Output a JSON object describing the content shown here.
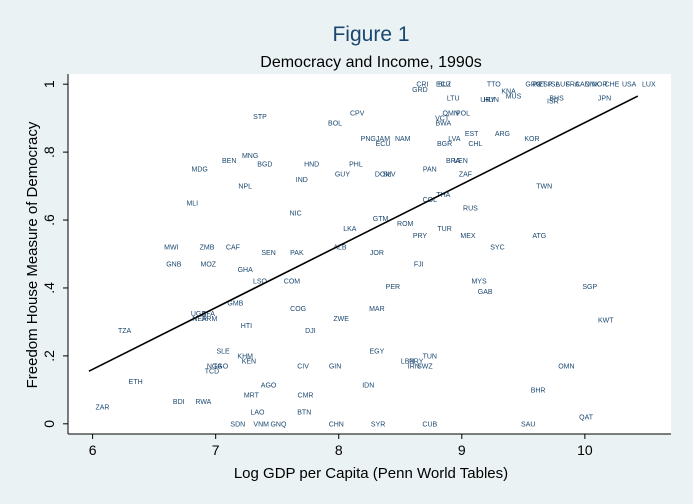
{
  "chart_data": {
    "type": "scatter",
    "title": "Figure 1",
    "subtitle": "Democracy and Income, 1990s",
    "xlabel": "Log GDP per Capita (Penn World Tables)",
    "ylabel": "Freedom House Measure of Democracy",
    "xlim": [
      5.8,
      10.7
    ],
    "ylim": [
      -0.03,
      1.03
    ],
    "xticks": [
      6,
      7,
      8,
      9,
      10
    ],
    "xtick_labels": [
      "6",
      "7",
      "8",
      "9",
      "10"
    ],
    "yticks": [
      0,
      0.2,
      0.4,
      0.6,
      0.8,
      1
    ],
    "ytick_labels": [
      "0",
      ".2",
      ".4",
      ".6",
      ".8",
      "1"
    ],
    "grid": false,
    "marker": "country-code-label",
    "fit_line": {
      "x": [
        5.97,
        10.43
      ],
      "y": [
        0.155,
        0.965
      ]
    },
    "points": [
      {
        "label": "CRI",
        "x": 8.68,
        "y": 1.0
      },
      {
        "label": "ECU",
        "x": 8.85,
        "y": 1.0
      },
      {
        "label": "BLZ",
        "x": 8.86,
        "y": 1.0
      },
      {
        "label": "GRD",
        "x": 8.66,
        "y": 0.985
      },
      {
        "label": "TTO",
        "x": 9.26,
        "y": 1.0
      },
      {
        "label": "KNA",
        "x": 9.38,
        "y": 0.98
      },
      {
        "label": "MUS",
        "x": 9.42,
        "y": 0.965
      },
      {
        "label": "GRC",
        "x": 9.58,
        "y": 1.0
      },
      {
        "label": "PRT",
        "x": 9.63,
        "y": 1.0
      },
      {
        "label": "ESP",
        "x": 9.68,
        "y": 1.0
      },
      {
        "label": "ISL",
        "x": 9.75,
        "y": 1.0
      },
      {
        "label": "AUS",
        "x": 9.82,
        "y": 1.0
      },
      {
        "label": "FRA",
        "x": 9.9,
        "y": 1.0
      },
      {
        "label": "CAN",
        "x": 9.98,
        "y": 1.0
      },
      {
        "label": "DNK",
        "x": 10.06,
        "y": 1.0
      },
      {
        "label": "NOR",
        "x": 10.12,
        "y": 1.0
      },
      {
        "label": "CHE",
        "x": 10.22,
        "y": 1.0
      },
      {
        "label": "USA",
        "x": 10.36,
        "y": 1.0
      },
      {
        "label": "LUX",
        "x": 10.52,
        "y": 1.0
      },
      {
        "label": "LTU",
        "x": 8.93,
        "y": 0.96
      },
      {
        "label": "URY",
        "x": 9.21,
        "y": 0.955
      },
      {
        "label": "HUN",
        "x": 9.24,
        "y": 0.955
      },
      {
        "label": "BHS",
        "x": 9.77,
        "y": 0.96
      },
      {
        "label": "ISR",
        "x": 9.74,
        "y": 0.95
      },
      {
        "label": "JPN",
        "x": 10.16,
        "y": 0.96
      },
      {
        "label": "STP",
        "x": 7.36,
        "y": 0.905
      },
      {
        "label": "CPV",
        "x": 8.15,
        "y": 0.915
      },
      {
        "label": "BOL",
        "x": 7.97,
        "y": 0.885
      },
      {
        "label": "OMN",
        "x": 8.91,
        "y": 0.915
      },
      {
        "label": "POL",
        "x": 9.01,
        "y": 0.915
      },
      {
        "label": "VCT",
        "x": 8.84,
        "y": 0.9
      },
      {
        "label": "BWA",
        "x": 8.85,
        "y": 0.885
      },
      {
        "label": "EST",
        "x": 9.08,
        "y": 0.855
      },
      {
        "label": "ARG",
        "x": 9.33,
        "y": 0.855
      },
      {
        "label": "PNG",
        "x": 8.24,
        "y": 0.84
      },
      {
        "label": "JAM",
        "x": 8.36,
        "y": 0.84
      },
      {
        "label": "NAM",
        "x": 8.52,
        "y": 0.84
      },
      {
        "label": "ECU",
        "x": 8.36,
        "y": 0.825
      },
      {
        "label": "LVA",
        "x": 8.94,
        "y": 0.84
      },
      {
        "label": "KOR",
        "x": 9.57,
        "y": 0.84
      },
      {
        "label": "BGR",
        "x": 8.86,
        "y": 0.825
      },
      {
        "label": "CHL",
        "x": 9.11,
        "y": 0.825
      },
      {
        "label": "MNG",
        "x": 7.28,
        "y": 0.79
      },
      {
        "label": "BEN",
        "x": 7.11,
        "y": 0.775
      },
      {
        "label": "BGD",
        "x": 7.4,
        "y": 0.765
      },
      {
        "label": "HND",
        "x": 7.78,
        "y": 0.765
      },
      {
        "label": "PHL",
        "x": 8.14,
        "y": 0.765
      },
      {
        "label": "BRA",
        "x": 8.93,
        "y": 0.775
      },
      {
        "label": "VEN",
        "x": 8.99,
        "y": 0.775
      },
      {
        "label": "MDG",
        "x": 6.87,
        "y": 0.75
      },
      {
        "label": "PAN",
        "x": 8.74,
        "y": 0.75
      },
      {
        "label": "GUY",
        "x": 8.03,
        "y": 0.735
      },
      {
        "label": "DOM",
        "x": 8.36,
        "y": 0.735
      },
      {
        "label": "SLV",
        "x": 8.41,
        "y": 0.735
      },
      {
        "label": "ZAF",
        "x": 9.03,
        "y": 0.735
      },
      {
        "label": "IND",
        "x": 7.7,
        "y": 0.72
      },
      {
        "label": "NPL",
        "x": 7.24,
        "y": 0.7
      },
      {
        "label": "TWN",
        "x": 9.67,
        "y": 0.7
      },
      {
        "label": "THA",
        "x": 8.85,
        "y": 0.675
      },
      {
        "label": "COL",
        "x": 8.74,
        "y": 0.66
      },
      {
        "label": "MLI",
        "x": 6.81,
        "y": 0.65
      },
      {
        "label": "RUS",
        "x": 9.07,
        "y": 0.635
      },
      {
        "label": "NIC",
        "x": 7.65,
        "y": 0.62
      },
      {
        "label": "GTM",
        "x": 8.34,
        "y": 0.605
      },
      {
        "label": "ROM",
        "x": 8.54,
        "y": 0.59
      },
      {
        "label": "LKA",
        "x": 8.09,
        "y": 0.575
      },
      {
        "label": "TUR",
        "x": 8.86,
        "y": 0.575
      },
      {
        "label": "PRY",
        "x": 8.66,
        "y": 0.555
      },
      {
        "label": "MEX",
        "x": 9.05,
        "y": 0.555
      },
      {
        "label": "ATG",
        "x": 9.63,
        "y": 0.555
      },
      {
        "label": "MWI",
        "x": 6.64,
        "y": 0.52
      },
      {
        "label": "ZMB",
        "x": 6.93,
        "y": 0.52
      },
      {
        "label": "CAF",
        "x": 7.14,
        "y": 0.52
      },
      {
        "label": "ALB",
        "x": 8.01,
        "y": 0.52
      },
      {
        "label": "SYC",
        "x": 9.29,
        "y": 0.52
      },
      {
        "label": "SEN",
        "x": 7.43,
        "y": 0.505
      },
      {
        "label": "PAK",
        "x": 7.66,
        "y": 0.505
      },
      {
        "label": "JOR",
        "x": 8.31,
        "y": 0.505
      },
      {
        "label": "GNB",
        "x": 6.66,
        "y": 0.47
      },
      {
        "label": "MOZ",
        "x": 6.94,
        "y": 0.47
      },
      {
        "label": "FJI",
        "x": 8.65,
        "y": 0.47
      },
      {
        "label": "GHA",
        "x": 7.24,
        "y": 0.455
      },
      {
        "label": "LSO",
        "x": 7.36,
        "y": 0.42
      },
      {
        "label": "COM",
        "x": 7.62,
        "y": 0.42
      },
      {
        "label": "MYS",
        "x": 9.14,
        "y": 0.42
      },
      {
        "label": "PER",
        "x": 8.44,
        "y": 0.405
      },
      {
        "label": "SGP",
        "x": 10.04,
        "y": 0.405
      },
      {
        "label": "GAB",
        "x": 9.19,
        "y": 0.39
      },
      {
        "label": "GMB",
        "x": 7.16,
        "y": 0.355
      },
      {
        "label": "COG",
        "x": 7.67,
        "y": 0.34
      },
      {
        "label": "MAR",
        "x": 8.31,
        "y": 0.34
      },
      {
        "label": "UGA",
        "x": 6.86,
        "y": 0.325
      },
      {
        "label": "BFA",
        "x": 6.94,
        "y": 0.325
      },
      {
        "label": "NER",
        "x": 6.87,
        "y": 0.31
      },
      {
        "label": "ARM",
        "x": 6.95,
        "y": 0.31
      },
      {
        "label": "ZWE",
        "x": 8.02,
        "y": 0.31
      },
      {
        "label": "KWT",
        "x": 10.17,
        "y": 0.305
      },
      {
        "label": "TZA",
        "x": 6.26,
        "y": 0.275
      },
      {
        "label": "HTI",
        "x": 7.25,
        "y": 0.29
      },
      {
        "label": "DJI",
        "x": 7.77,
        "y": 0.275
      },
      {
        "label": "SLE",
        "x": 7.06,
        "y": 0.215
      },
      {
        "label": "EGY",
        "x": 8.31,
        "y": 0.215
      },
      {
        "label": "KHM",
        "x": 7.24,
        "y": 0.2
      },
      {
        "label": "TUN",
        "x": 8.74,
        "y": 0.2
      },
      {
        "label": "KEN",
        "x": 7.27,
        "y": 0.185
      },
      {
        "label": "LBN",
        "x": 8.56,
        "y": 0.185
      },
      {
        "label": "PRY",
        "x": 8.63,
        "y": 0.185
      },
      {
        "label": "NGA",
        "x": 6.99,
        "y": 0.17
      },
      {
        "label": "TGO",
        "x": 7.04,
        "y": 0.17
      },
      {
        "label": "CIV",
        "x": 7.71,
        "y": 0.17
      },
      {
        "label": "GIN",
        "x": 7.97,
        "y": 0.17
      },
      {
        "label": "IRN",
        "x": 8.61,
        "y": 0.17
      },
      {
        "label": "SWZ",
        "x": 8.7,
        "y": 0.17
      },
      {
        "label": "OMN",
        "x": 9.85,
        "y": 0.17
      },
      {
        "label": "TCD",
        "x": 6.97,
        "y": 0.155
      },
      {
        "label": "ETH",
        "x": 6.35,
        "y": 0.125
      },
      {
        "label": "AGO",
        "x": 7.43,
        "y": 0.115
      },
      {
        "label": "IDN",
        "x": 8.24,
        "y": 0.115
      },
      {
        "label": "BHR",
        "x": 9.62,
        "y": 0.1
      },
      {
        "label": "MRT",
        "x": 7.29,
        "y": 0.085
      },
      {
        "label": "CMR",
        "x": 7.73,
        "y": 0.085
      },
      {
        "label": "BDI",
        "x": 6.7,
        "y": 0.065
      },
      {
        "label": "RWA",
        "x": 6.9,
        "y": 0.065
      },
      {
        "label": "ZAR",
        "x": 6.08,
        "y": 0.05
      },
      {
        "label": "LAO",
        "x": 7.34,
        "y": 0.035
      },
      {
        "label": "BTN",
        "x": 7.72,
        "y": 0.035
      },
      {
        "label": "QAT",
        "x": 10.01,
        "y": 0.02
      },
      {
        "label": "SDN",
        "x": 7.18,
        "y": 0.0
      },
      {
        "label": "VNM",
        "x": 7.37,
        "y": 0.0
      },
      {
        "label": "GNQ",
        "x": 7.51,
        "y": 0.0
      },
      {
        "label": "CHN",
        "x": 7.98,
        "y": 0.0
      },
      {
        "label": "SYR",
        "x": 8.32,
        "y": 0.0
      },
      {
        "label": "CUB",
        "x": 8.74,
        "y": 0.0
      },
      {
        "label": "SAU",
        "x": 9.54,
        "y": 0.0
      }
    ]
  }
}
